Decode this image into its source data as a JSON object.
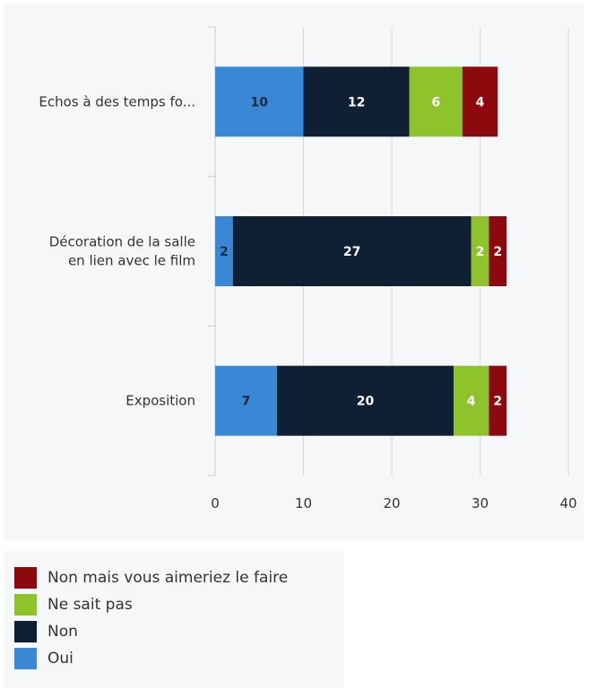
{
  "chart_data": {
    "type": "bar",
    "orientation": "horizontal",
    "stacked": true,
    "categories": [
      [
        "Echos à des temps fo..."
      ],
      [
        "Décoration de la salle",
        "en lien avec le film"
      ],
      [
        "Exposition"
      ]
    ],
    "series": [
      {
        "name": "Oui",
        "color": "#3a87d6",
        "label_color": "#1a2a40",
        "values": [
          10,
          2,
          7
        ]
      },
      {
        "name": "Non",
        "color": "#0f2035",
        "label_color": "#ffffff",
        "values": [
          12,
          27,
          20
        ]
      },
      {
        "name": "Ne sait pas",
        "color": "#8ec32c",
        "label_color": "#ffffff",
        "values": [
          6,
          2,
          4
        ]
      },
      {
        "name": "Non mais vous aimeriez le faire",
        "color": "#8c0a0e",
        "label_color": "#ffffff",
        "values": [
          4,
          2,
          2
        ]
      }
    ],
    "xlim": [
      0,
      40
    ],
    "xticks": [
      0,
      10,
      20,
      30,
      40
    ],
    "grid": true,
    "legend_position": "bottom-left",
    "legend_order": [
      "Non mais vous aimeriez le faire",
      "Ne sait pas",
      "Non",
      "Oui"
    ]
  }
}
